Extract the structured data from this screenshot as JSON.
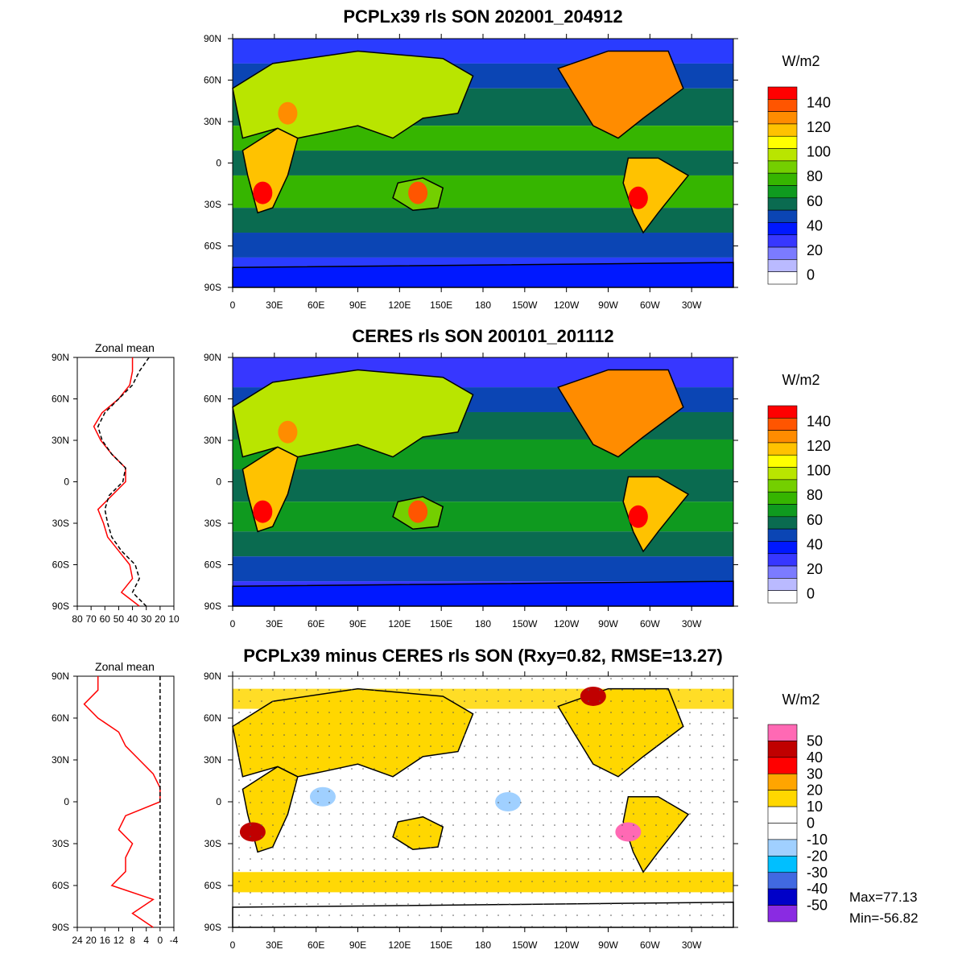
{
  "chart_data": [
    {
      "type": "heatmap",
      "title": "PCPLx39 rls SON 202001_204912",
      "units": "W/m2",
      "x_ticks": [
        "0",
        "30E",
        "60E",
        "90E",
        "120E",
        "150E",
        "180",
        "150W",
        "120W",
        "90W",
        "60W",
        "30W"
      ],
      "y_ticks": [
        "90N",
        "60N",
        "30N",
        "0",
        "30S",
        "60S",
        "90S"
      ],
      "colorbar_labels": [
        "140",
        "120",
        "100",
        "80",
        "60",
        "40",
        "20",
        "0"
      ],
      "colorbar_colors": [
        "#ff0000",
        "#ff5500",
        "#ff8c00",
        "#ffc200",
        "#ffff00",
        "#b9e500",
        "#74cf00",
        "#36b500",
        "#0f9a1f",
        "#0a6b50",
        "#0b45b4",
        "#0018ff",
        "#3737ff",
        "#7b7bff",
        "#babaff",
        "#ffffff"
      ]
    },
    {
      "type": "heatmap",
      "title": "CERES rls SON 200101_201112",
      "units": "W/m2",
      "x_ticks": [
        "0",
        "30E",
        "60E",
        "90E",
        "120E",
        "150E",
        "180",
        "150W",
        "120W",
        "90W",
        "60W",
        "30W"
      ],
      "y_ticks": [
        "90N",
        "60N",
        "30N",
        "0",
        "30S",
        "60S",
        "90S"
      ],
      "colorbar_labels": [
        "140",
        "120",
        "100",
        "80",
        "60",
        "40",
        "20",
        "0"
      ],
      "zonal_mean": {
        "title": "Zonal mean",
        "x_ticks": [
          "80",
          "70",
          "60",
          "50",
          "40",
          "30",
          "20",
          "10"
        ],
        "xlim": [
          80,
          10
        ],
        "lat": [
          90,
          80,
          70,
          60,
          50,
          40,
          30,
          20,
          10,
          0,
          -10,
          -20,
          -30,
          -40,
          -50,
          -60,
          -70,
          -80,
          -90
        ],
        "series": [
          {
            "values": [
              40,
              40,
              42,
              50,
              62,
              68,
              63,
              55,
              45,
              45,
              55,
              65,
              61,
              58,
              50,
              42,
              40,
              48,
              35
            ],
            "color": "#ff0000",
            "dash": false
          },
          {
            "values": [
              28,
              35,
              40,
              50,
              60,
              65,
              62,
              55,
              45,
              47,
              57,
              60,
              58,
              55,
              48,
              38,
              35,
              40,
              30
            ],
            "color": "#000000",
            "dash": true
          }
        ]
      }
    },
    {
      "type": "heatmap",
      "title": "PCPLx39 minus CERES rls SON (Rxy=0.82, RMSE=13.27)",
      "units": "W/m2",
      "x_ticks": [
        "0",
        "30E",
        "60E",
        "90E",
        "120E",
        "150E",
        "180",
        "150W",
        "120W",
        "90W",
        "60W",
        "30W"
      ],
      "y_ticks": [
        "90N",
        "60N",
        "30N",
        "0",
        "30S",
        "60S",
        "90S"
      ],
      "colorbar_labels": [
        "50",
        "40",
        "30",
        "20",
        "10",
        "0",
        "-10",
        "-20",
        "-30",
        "-40",
        "-50"
      ],
      "colorbar_colors": [
        "#ff69b4",
        "#c00000",
        "#ff0000",
        "#ffa500",
        "#ffd700",
        "#ffffff",
        "#ffffff",
        "#a0d0ff",
        "#00bfff",
        "#4169e1",
        "#0000c8",
        "#8a2be2"
      ],
      "max_label": "Max=77.13",
      "min_label": "Min=-56.82",
      "zonal_mean": {
        "title": "Zonal mean",
        "x_ticks": [
          "24",
          "20",
          "16",
          "12",
          "8",
          "4",
          "0",
          "-4"
        ],
        "xlim": [
          24,
          -4
        ],
        "lat": [
          90,
          80,
          70,
          60,
          50,
          40,
          30,
          20,
          10,
          0,
          -10,
          -20,
          -30,
          -40,
          -50,
          -60,
          -70,
          -80,
          -90
        ],
        "series": [
          {
            "values": [
              18,
              18,
              22,
              18,
              12,
              10,
              6,
              2,
              0,
              0,
              10,
              12,
              8,
              10,
              10,
              14,
              2,
              8,
              2
            ],
            "color": "#ff0000",
            "dash": false
          },
          {
            "values": [
              0,
              0,
              0,
              0,
              0,
              0,
              0,
              0,
              0,
              0,
              0,
              0,
              0,
              0,
              0,
              0,
              0,
              0,
              0
            ],
            "color": "#000000",
            "dash": true
          }
        ]
      }
    }
  ]
}
